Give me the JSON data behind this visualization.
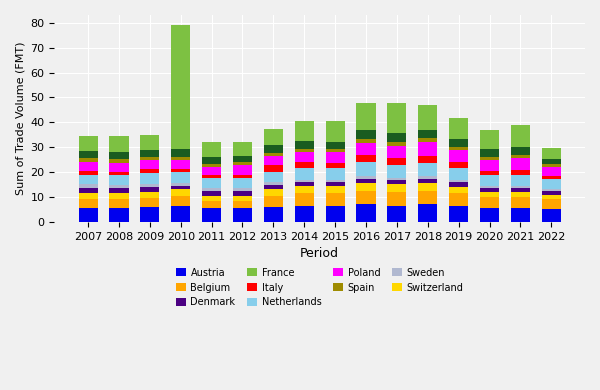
{
  "years": [
    2007,
    2008,
    2009,
    2010,
    2011,
    2012,
    2013,
    2014,
    2015,
    2016,
    2017,
    2018,
    2019,
    2020,
    2021,
    2022
  ],
  "colors": {
    "Austria": "#0000EE",
    "Belgium": "#FFA500",
    "Switzerland": "#FFD700",
    "Denmark": "#4B0082",
    "Sweden": "#B0B8D0",
    "Netherlands": "#87CEEB",
    "Italy": "#FF0000",
    "Poland": "#FF00FF",
    "Spain": "#9E8B00",
    "dark_green": "#1A5C20",
    "France": "#7DC142"
  },
  "stack_order": [
    "Austria",
    "Belgium",
    "Switzerland",
    "Denmark",
    "Sweden",
    "Netherlands",
    "Italy",
    "Poland",
    "Spain",
    "dark_green",
    "France"
  ],
  "data": {
    "Austria": [
      5500,
      5500,
      6000,
      6500,
      5500,
      5500,
      6000,
      6500,
      6500,
      7000,
      6500,
      7000,
      6500,
      5500,
      5500,
      5000
    ],
    "Belgium": [
      3500,
      3500,
      3500,
      4000,
      3000,
      3000,
      4500,
      5000,
      5000,
      5500,
      5500,
      5500,
      5000,
      4500,
      4500,
      4000
    ],
    "Switzerland": [
      2500,
      2500,
      2500,
      2500,
      2000,
      2000,
      2500,
      2800,
      2800,
      3000,
      3000,
      3000,
      2500,
      2000,
      2000,
      1800
    ],
    "Denmark": [
      2000,
      2000,
      2000,
      1500,
      1800,
      1800,
      1800,
      1500,
      1500,
      1800,
      1800,
      1800,
      1800,
      1500,
      1500,
      1500
    ],
    "Sweden": [
      1500,
      1200,
      1200,
      1000,
      1200,
      1200,
      1200,
      1200,
      1200,
      1200,
      1000,
      1000,
      1000,
      1000,
      1000,
      1000
    ],
    "Netherlands": [
      4000,
      4000,
      4500,
      4500,
      4000,
      4000,
      4000,
      4500,
      4500,
      5500,
      5000,
      5500,
      5000,
      4500,
      4500,
      3800
    ],
    "Italy": [
      1500,
      1500,
      1500,
      1200,
      1200,
      1200,
      3000,
      2500,
      2200,
      2800,
      2800,
      2800,
      2200,
      1500,
      2000,
      1500
    ],
    "Poland": [
      3500,
      3500,
      3500,
      3500,
      3500,
      4000,
      3500,
      4000,
      4500,
      5000,
      5000,
      5500,
      5000,
      4500,
      4500,
      3500
    ],
    "Spain": [
      1500,
      1500,
      1500,
      1500,
      1200,
      1200,
      1200,
      1200,
      1200,
      1500,
      1500,
      1500,
      1200,
      1200,
      1200,
      1000
    ],
    "dark_green": [
      2800,
      2800,
      2800,
      3000,
      2500,
      2500,
      3200,
      3200,
      2800,
      3500,
      3800,
      3500,
      3200,
      3200,
      3200,
      2200
    ],
    "France": [
      6000,
      6500,
      6000,
      50000,
      6000,
      5500,
      6500,
      8000,
      8500,
      11000,
      12000,
      10000,
      8500,
      7500,
      9000,
      4500
    ]
  },
  "ylabel": "Sum of Trade Volume (FMT)",
  "xlabel": "Period",
  "background_color": "#F0F0F0",
  "grid_color": "#FFFFFF",
  "legend_entries": [
    {
      "label": "Austria",
      "color": "#0000EE"
    },
    {
      "label": "Belgium",
      "color": "#FFA500"
    },
    {
      "label": "Denmark",
      "color": "#4B0082"
    },
    {
      "label": "France",
      "color": "#7DC142"
    },
    {
      "label": "Italy",
      "color": "#FF0000"
    },
    {
      "label": "Netherlands",
      "color": "#87CEEB"
    },
    {
      "label": "Poland",
      "color": "#FF00FF"
    },
    {
      "label": "Spain",
      "color": "#9E8B00"
    },
    {
      "label": "Sweden",
      "color": "#B0B8D0"
    },
    {
      "label": "Switzerland",
      "color": "#FFD700"
    }
  ]
}
